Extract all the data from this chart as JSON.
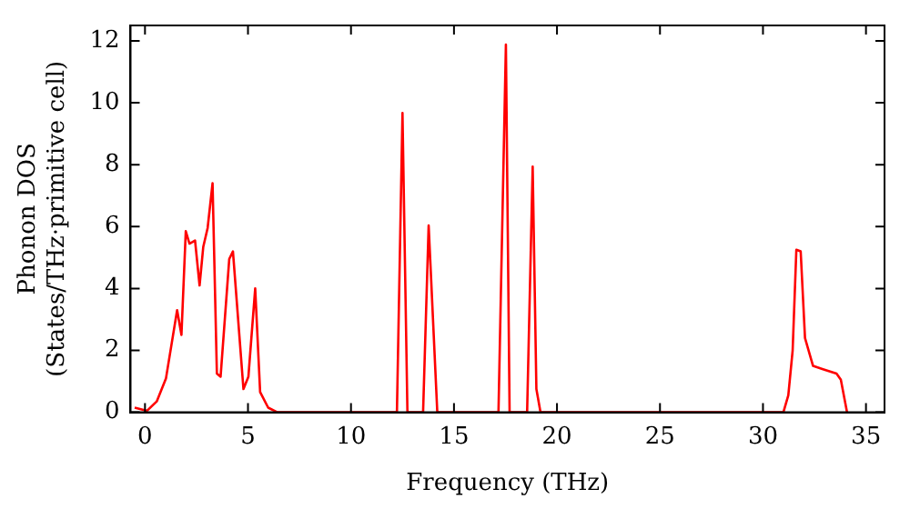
{
  "chart_data": {
    "type": "line",
    "xlabel": "Frequency (THz)",
    "ylabel": "Phonon DOS\n(States/THz·primitive cell)",
    "xlim": [
      -0.7,
      35.9
    ],
    "ylim": [
      0,
      12.5
    ],
    "xticks": [
      0,
      5,
      10,
      15,
      20,
      25,
      30,
      35
    ],
    "yticks": [
      0,
      2,
      4,
      6,
      8,
      10,
      12
    ],
    "grid": false,
    "legend": false,
    "marker": "none",
    "line_style": "solid",
    "series": [
      {
        "color": "#ff0000",
        "x": [
          -0.5,
          0.1,
          0.57,
          1.02,
          1.56,
          1.77,
          1.98,
          2.16,
          2.43,
          2.65,
          2.83,
          3.04,
          3.28,
          3.49,
          3.67,
          4.09,
          4.27,
          4.78,
          5.02,
          5.35,
          5.59,
          5.98,
          6.43,
          12.23,
          12.5,
          12.74,
          13.5,
          13.77,
          14.19,
          17.16,
          17.52,
          17.7,
          18.55,
          18.82,
          19.0,
          19.2,
          30.99,
          31.23,
          31.44,
          31.62,
          31.83,
          32.04,
          32.43,
          32.88,
          33.57,
          33.78,
          34.08
        ],
        "values": [
          0.15,
          0.05,
          0.35,
          1.1,
          3.3,
          2.5,
          5.85,
          5.45,
          5.55,
          4.1,
          5.35,
          5.95,
          7.4,
          1.25,
          1.15,
          4.95,
          5.2,
          0.75,
          1.15,
          4.0,
          0.65,
          0.15,
          0,
          0,
          9.67,
          0,
          0,
          6.04,
          0,
          0,
          11.88,
          0,
          0,
          7.94,
          0.75,
          0,
          0,
          0.55,
          2.0,
          5.25,
          5.2,
          2.4,
          1.5,
          1.4,
          1.25,
          1.05,
          0
        ]
      }
    ]
  }
}
